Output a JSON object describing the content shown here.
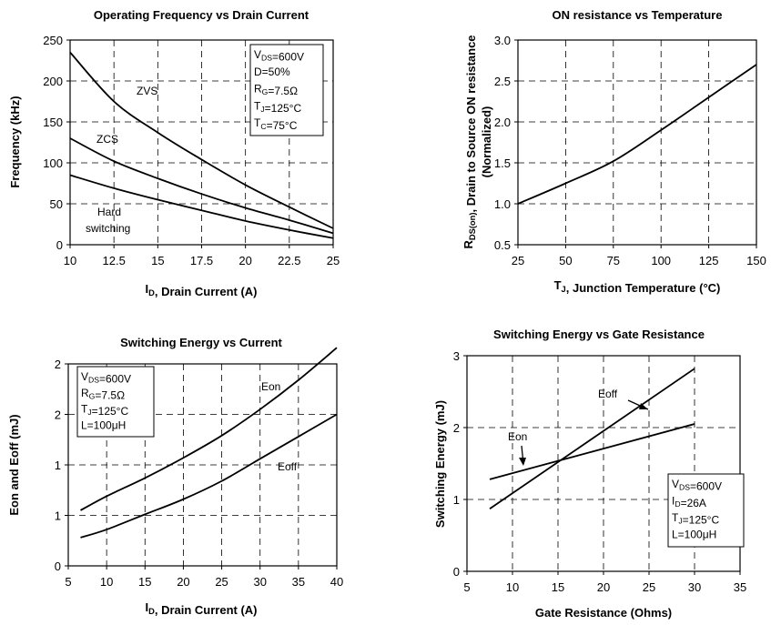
{
  "chart_data": [
    {
      "type": "line",
      "title": "Operating Frequency vs Drain Current",
      "xlabel": "I_D, Drain Current (A)",
      "ylabel": "Frequency (kHz)",
      "xlim": [
        10,
        25
      ],
      "ylim": [
        0,
        250
      ],
      "xticks": [
        "10",
        "12.5",
        "15",
        "17.5",
        "20",
        "22.5",
        "25"
      ],
      "yticks": [
        "0",
        "50",
        "100",
        "150",
        "200",
        "250"
      ],
      "grid": true,
      "series": [
        {
          "name": "ZVS",
          "x": [
            10,
            12.5,
            15,
            17.5,
            20,
            22.5,
            25
          ],
          "y": [
            235,
            175,
            137,
            104,
            73,
            46,
            20
          ]
        },
        {
          "name": "ZCS",
          "x": [
            10,
            12.5,
            15,
            17.5,
            20,
            22.5,
            25
          ],
          "y": [
            130,
            102,
            81,
            62,
            45,
            30,
            14
          ]
        },
        {
          "name": "Hard switching",
          "x": [
            10,
            12.5,
            15,
            17.5,
            20,
            22.5,
            25
          ],
          "y": [
            85,
            69,
            55,
            42,
            29,
            18,
            8
          ]
        }
      ],
      "annotations": [
        "ZVS",
        "ZCS",
        "Hard",
        "switching"
      ],
      "legend_box": [
        "V_DS=600V",
        "D=50%",
        "R_G=7.5Ω",
        "T_J=125°C",
        "T_C=75°C"
      ]
    },
    {
      "type": "line",
      "title": "ON resistance vs Temperature",
      "xlabel": "T_J, Junction Temperature (°C)",
      "ylabel_line1": "R_DS(on), Drain to Source ON resistance",
      "ylabel_line2": "(Normalized)",
      "xlim": [
        25,
        150
      ],
      "ylim": [
        0.5,
        3.0
      ],
      "xticks": [
        "25",
        "50",
        "75",
        "100",
        "125",
        "150"
      ],
      "yticks": [
        "0.5",
        "1.0",
        "1.5",
        "2.0",
        "2.5",
        "3.0"
      ],
      "grid": true,
      "series": [
        {
          "x": [
            25,
            50,
            75,
            100,
            125,
            150
          ],
          "y": [
            1.0,
            1.25,
            1.52,
            1.9,
            2.3,
            2.7
          ]
        }
      ]
    },
    {
      "type": "line",
      "title": "Switching Energy vs Current",
      "xlabel": "I_D, Drain Current (A)",
      "ylabel": "Eon and Eoff (mJ)",
      "xlim": [
        5,
        40
      ],
      "ylim": [
        0,
        2
      ],
      "xticks": [
        "5",
        "10",
        "15",
        "20",
        "25",
        "30",
        "35",
        "40"
      ],
      "yticks": [
        "0",
        "1",
        "1",
        "2",
        "2"
      ],
      "grid": true,
      "series": [
        {
          "name": "Eon",
          "x": [
            6.6,
            10,
            15,
            20,
            25,
            30,
            35,
            40
          ],
          "y": [
            0.55,
            0.69,
            0.87,
            1.07,
            1.29,
            1.55,
            1.84,
            2.16
          ]
        },
        {
          "name": "Eoff",
          "x": [
            6.6,
            10,
            15,
            20,
            25,
            30,
            35,
            40
          ],
          "y": [
            0.28,
            0.36,
            0.51,
            0.66,
            0.84,
            1.06,
            1.28,
            1.5
          ]
        }
      ],
      "annotations": [
        "Eon",
        "Eoff"
      ],
      "legend_box": [
        "V_DS=600V",
        "R_G=7.5Ω",
        "T_J=125°C",
        "L=100μH"
      ]
    },
    {
      "type": "line",
      "title": "Switching Energy vs Gate Resistance",
      "xlabel": "Gate Resistance (Ohms)",
      "ylabel": "Switching Energy (mJ)",
      "xlim": [
        5,
        35
      ],
      "ylim": [
        0,
        3
      ],
      "xticks": [
        "5",
        "10",
        "15",
        "20",
        "25",
        "30",
        "35"
      ],
      "yticks": [
        "0",
        "1",
        "2",
        "3"
      ],
      "grid": true,
      "series": [
        {
          "name": "Eoff",
          "x": [
            7.5,
            30
          ],
          "y": [
            0.87,
            2.82
          ]
        },
        {
          "name": "Eon",
          "x": [
            7.5,
            30
          ],
          "y": [
            1.28,
            2.05
          ]
        }
      ],
      "annotations": [
        "Eoff",
        "Eon"
      ],
      "legend_box": [
        "V_DS=600V",
        "I_D=26A",
        "T_J=125°C",
        "L=100μH"
      ]
    }
  ]
}
